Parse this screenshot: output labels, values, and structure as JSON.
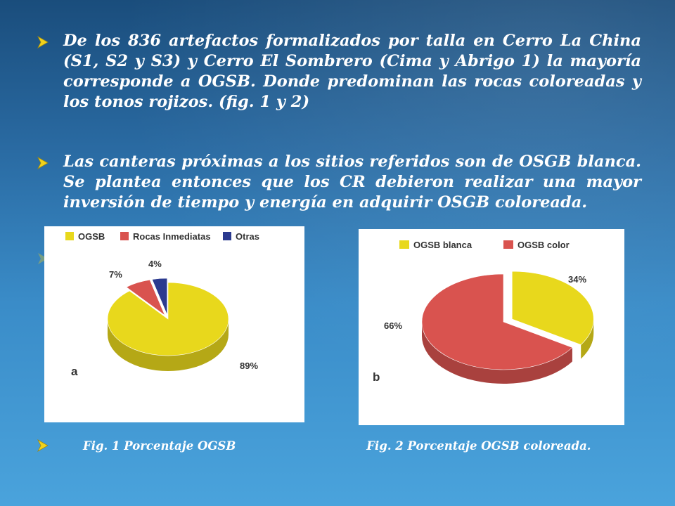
{
  "bullets": [
    {
      "text": "De los 836 artefactos formalizados por talla en Cerro La China (S1, S2 y S3) y Cerro El Sombrero (Cima y Abrigo 1) la mayoría corresponde a OGSB. Donde predominan  las  rocas coloreadas y los tonos rojizos. (fig. 1 y 2)",
      "icon": "arrow-bullet-icon"
    },
    {
      "text": "Las canteras próximas a los sitios referidos son de OSGB blanca. Se plantea entonces que los CR debieron realizar una mayor inversión de tiempo y energía en adquirir OSGB coloreada.",
      "icon": "arrow-bullet-icon"
    }
  ],
  "captions": {
    "fig1": "Fig. 1  Porcentaje OGSB",
    "fig2": "Fig. 2 Porcentaje OGSB coloreada."
  },
  "colors": {
    "yellow": "#e8d81c",
    "red": "#d9534f",
    "blue": "#2b3a8f",
    "arrow": "#f2d21b"
  },
  "chart_data": [
    {
      "type": "pie",
      "panel_letter": "a",
      "legend": [
        "OGSB",
        "Rocas Inmediatas",
        "Otras"
      ],
      "series": [
        {
          "name": "OGSB",
          "value": 89,
          "label": "89%",
          "color": "#e8d81c"
        },
        {
          "name": "Rocas Inmediatas",
          "value": 7,
          "label": "7%",
          "color": "#d9534f"
        },
        {
          "name": "Otras",
          "value": 4,
          "label": "4%",
          "color": "#2b3a8f"
        }
      ],
      "legend_placement": "top"
    },
    {
      "type": "pie",
      "panel_letter": "b",
      "legend": [
        "OGSB blanca",
        "OGSB color"
      ],
      "series": [
        {
          "name": "OGSB blanca",
          "value": 34,
          "label": "34%",
          "color": "#e8d81c"
        },
        {
          "name": "OGSB color",
          "value": 66,
          "label": "66%",
          "color": "#d9534f"
        }
      ],
      "legend_placement": "top"
    }
  ]
}
